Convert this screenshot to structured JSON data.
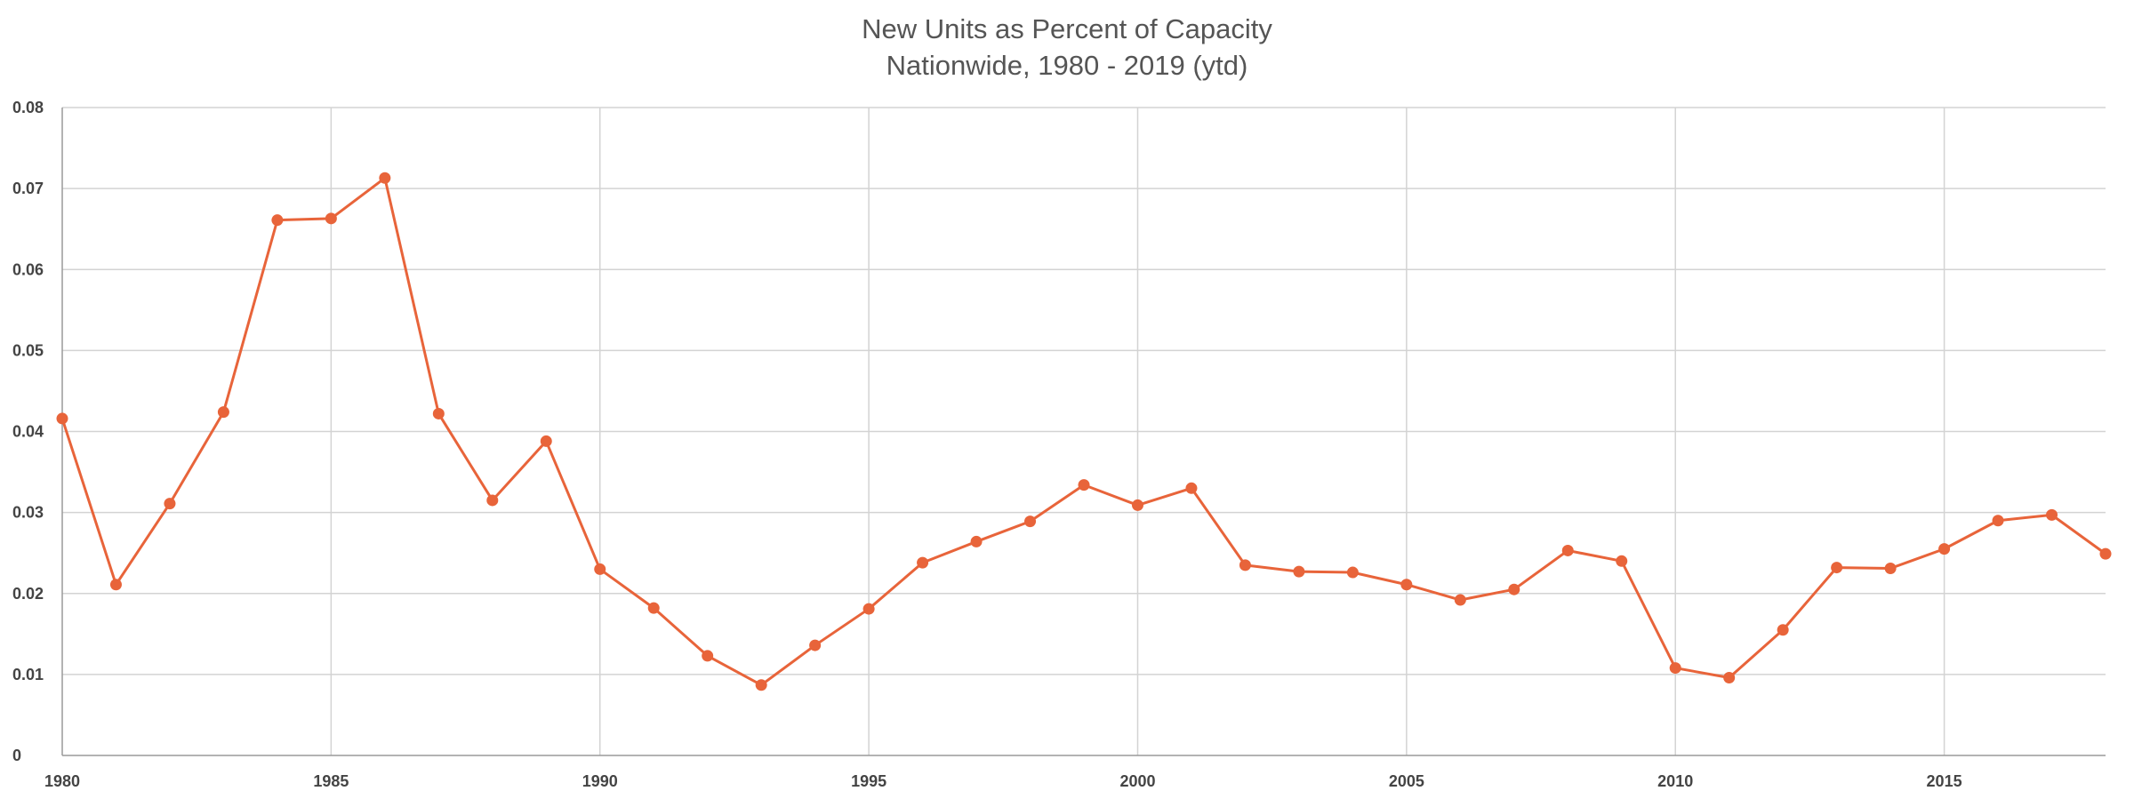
{
  "chart_data": {
    "type": "line",
    "title": "New Units as Percent of Capacity",
    "subtitle": "Nationwide, 1980 - 2019 (ytd)",
    "xlabel": "",
    "ylabel": "",
    "xlim": [
      1980,
      2018
    ],
    "ylim": [
      0,
      0.08
    ],
    "x_ticks": [
      1980,
      1985,
      1990,
      1995,
      2000,
      2005,
      2010,
      2015
    ],
    "y_ticks": [
      0,
      0.01,
      0.02,
      0.03,
      0.04,
      0.05,
      0.06,
      0.07,
      0.08
    ],
    "y_tick_labels": [
      "0",
      "0.01",
      "0.02",
      "0.03",
      "0.04",
      "0.05",
      "0.06",
      "0.07",
      "0.08"
    ],
    "grid": true,
    "legend": "none",
    "series": [
      {
        "color": "#e8643a",
        "x": [
          1980,
          1981,
          1982,
          1983,
          1984,
          1985,
          1986,
          1987,
          1988,
          1989,
          1990,
          1991,
          1992,
          1993,
          1994,
          1995,
          1996,
          1997,
          1998,
          1999,
          2000,
          2001,
          2002,
          2003,
          2004,
          2005,
          2006,
          2007,
          2008,
          2009,
          2010,
          2011,
          2012,
          2013,
          2014,
          2015,
          2016,
          2017,
          2018
        ],
        "values": [
          0.0416,
          0.0211,
          0.0311,
          0.0424,
          0.0661,
          0.0663,
          0.0713,
          0.0422,
          0.0315,
          0.0388,
          0.023,
          0.0182,
          0.0123,
          0.0087,
          0.0136,
          0.0181,
          0.0238,
          0.0264,
          0.0289,
          0.0334,
          0.0309,
          0.033,
          0.0235,
          0.0227,
          0.0226,
          0.0211,
          0.0192,
          0.0205,
          0.0253,
          0.024,
          0.0108,
          0.0096,
          0.0155,
          0.0232,
          0.0231,
          0.0255,
          0.029,
          0.0297,
          0.0249
        ]
      }
    ]
  }
}
